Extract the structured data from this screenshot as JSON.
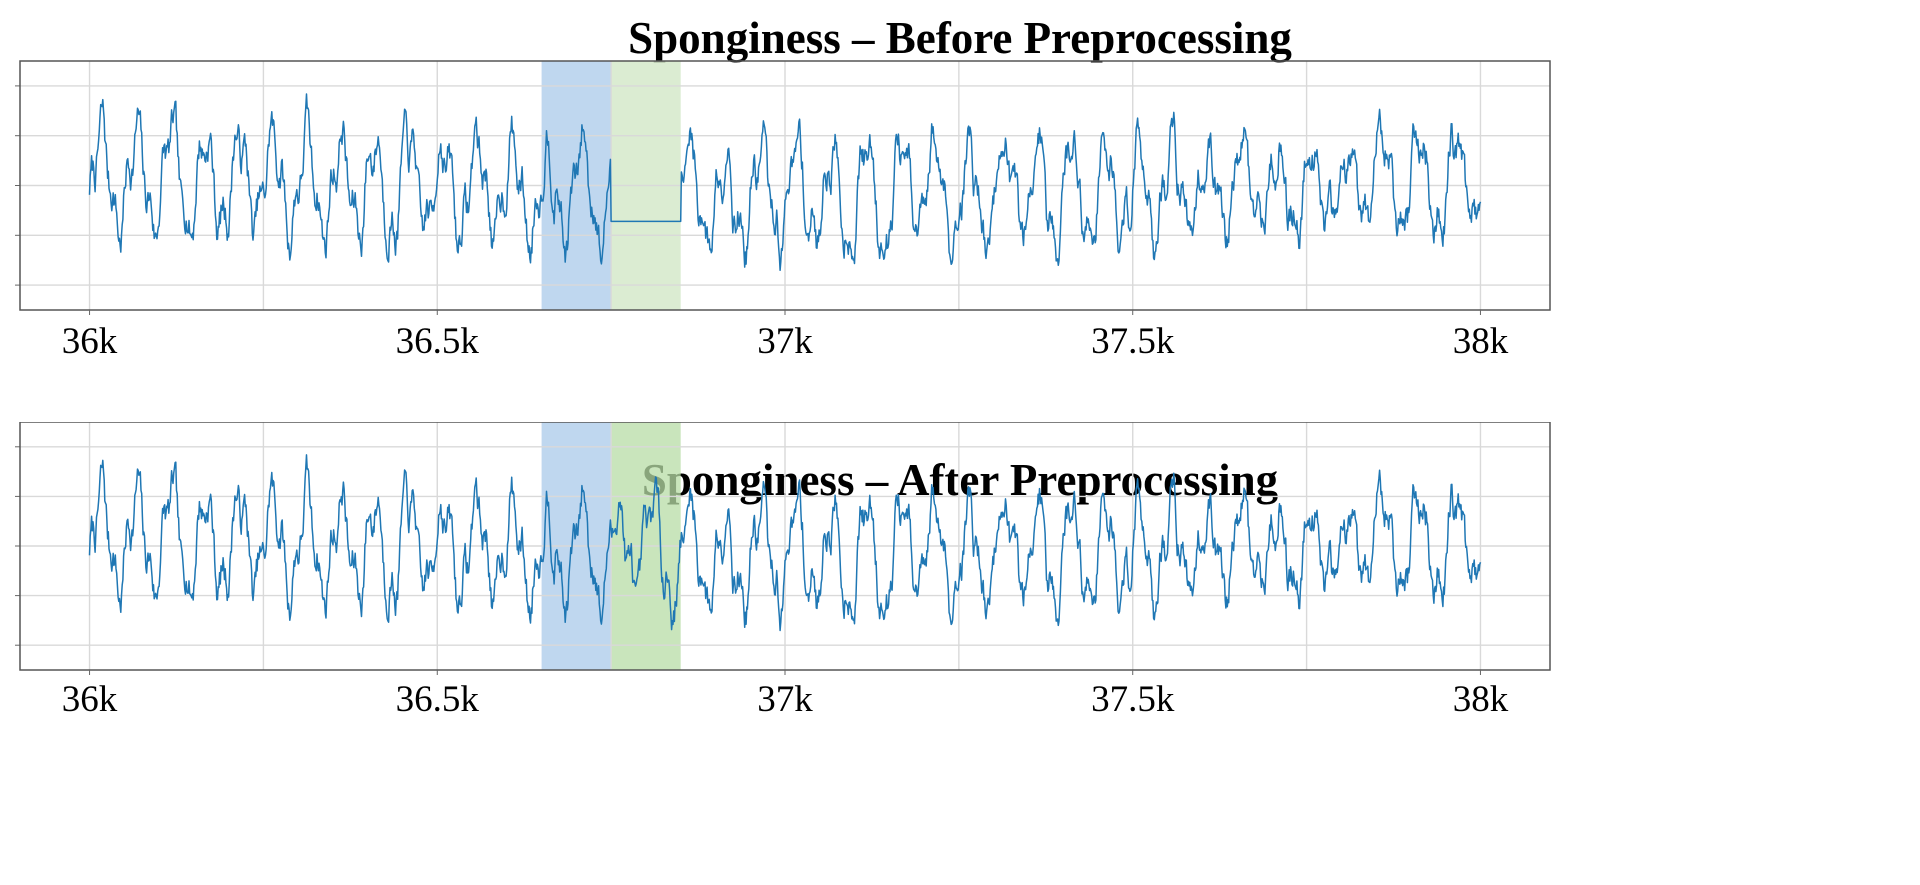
{
  "chart_data": [
    {
      "type": "line",
      "title": "Sponginess – Before Preprocessing",
      "xlabel": "",
      "ylabel": "",
      "xlim": [
        35900,
        38100
      ],
      "ylim": [
        -2.5,
        2.5
      ],
      "x_ticks": [
        36000,
        36500,
        37000,
        37500,
        38000
      ],
      "x_tick_labels": [
        "36k",
        "36.5k",
        "37k",
        "37.5k",
        "38k"
      ],
      "grid": true,
      "highlight_regions": [
        {
          "x0": 36650,
          "x1": 36750,
          "color": "#a9c9ea"
        },
        {
          "x0": 36750,
          "x1": 36850,
          "color": "#cfe6c3"
        }
      ],
      "gap": {
        "x0": 36750,
        "x1": 36850,
        "value": -0.72
      },
      "series_color": "#1f77b4",
      "series": [
        {
          "seed": 7,
          "x_start": 36000,
          "x_end": 38000,
          "points": 2001
        }
      ]
    },
    {
      "type": "line",
      "title": "Sponginess – After Preprocessing",
      "xlabel": "",
      "ylabel": "",
      "xlim": [
        35900,
        38100
      ],
      "ylim": [
        -2.5,
        2.5
      ],
      "x_ticks": [
        36000,
        36500,
        37000,
        37500,
        38000
      ],
      "x_tick_labels": [
        "36k",
        "36.5k",
        "37k",
        "37.5k",
        "38k"
      ],
      "grid": true,
      "highlight_regions": [
        {
          "x0": 36650,
          "x1": 36750,
          "color": "#a9c9ea"
        },
        {
          "x0": 36750,
          "x1": 36850,
          "color": "#b7dca6"
        }
      ],
      "series_color": "#1f77b4",
      "series": [
        {
          "seed": 7,
          "x_start": 36000,
          "x_end": 38000,
          "points": 2001
        }
      ]
    }
  ]
}
